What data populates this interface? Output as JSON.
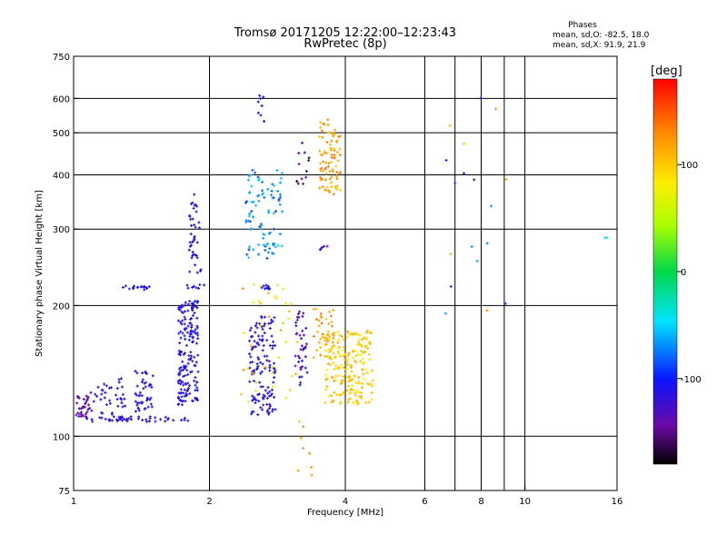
{
  "chart_data": {
    "type": "scatter",
    "title": "Tromsø 20171205 12:22:00–12:23:43",
    "subtitle": "RwPretec (8p)",
    "stats": {
      "heading": "Phases",
      "line1": "mean, sd,O: -82.5, 18.0",
      "line2": "mean, sd,X:  91.9, 21.9"
    },
    "xlabel": "Frequency [MHz]",
    "ylabel": "Stationary phase Virtual Height [km]",
    "x_scale": "log",
    "y_scale": "log",
    "xlim": [
      1,
      16
    ],
    "ylim": [
      75,
      750
    ],
    "x_ticks": [
      {
        "v": 1,
        "label": "1"
      },
      {
        "v": 2,
        "label": "2"
      },
      {
        "v": 4,
        "label": "4"
      },
      {
        "v": 6,
        "label": "6"
      },
      {
        "v": 8,
        "label": "8"
      },
      {
        "v": 10,
        "label": "10"
      },
      {
        "v": 16,
        "label": "16"
      }
    ],
    "x_grid": [
      2,
      4,
      6,
      7,
      8,
      9,
      10
    ],
    "y_ticks": [
      {
        "v": 75,
        "label": "75"
      },
      {
        "v": 100,
        "label": "100"
      },
      {
        "v": 200,
        "label": "200"
      },
      {
        "v": 300,
        "label": "300"
      },
      {
        "v": 400,
        "label": "400"
      },
      {
        "v": 500,
        "label": "500"
      },
      {
        "v": 600,
        "label": "600"
      },
      {
        "v": 750,
        "label": "750"
      }
    ],
    "grid": true,
    "colorbar": {
      "label": "[deg]",
      "range": [
        -180,
        180
      ],
      "ticks": [
        {
          "v": 100,
          "label": "100"
        },
        {
          "v": 0,
          "label": "0"
        },
        {
          "v": -100,
          "label": "-100"
        }
      ]
    },
    "clusters": [
      {
        "name": "o1-base",
        "xmin": 1.0,
        "xmax": 1.08,
        "ymin": 110,
        "ymax": 124,
        "n": 30,
        "phase": [
          -140,
          -140
        ]
      },
      {
        "name": "o1-band",
        "xmin": 1.06,
        "xmax": 1.8,
        "ymin": 108,
        "ymax": 111,
        "n": 50,
        "phase": [
          -120,
          -108
        ]
      },
      {
        "name": "o1-col-a",
        "xmin": 1.07,
        "xmax": 1.22,
        "ymin": 112,
        "ymax": 132,
        "n": 25,
        "phase": [
          -122,
          -106
        ]
      },
      {
        "name": "o1-col-b",
        "xmin": 1.24,
        "xmax": 1.3,
        "ymin": 116,
        "ymax": 140,
        "n": 15,
        "phase": [
          -122,
          -106
        ]
      },
      {
        "name": "o1-col-c",
        "xmin": 1.37,
        "xmax": 1.5,
        "ymin": 114,
        "ymax": 142,
        "n": 45,
        "phase": [
          -122,
          -104
        ]
      },
      {
        "name": "o-220",
        "xmin": 1.28,
        "xmax": 1.48,
        "ymin": 217,
        "ymax": 222,
        "n": 16,
        "phase": [
          -112,
          -104
        ]
      },
      {
        "name": "o2-col",
        "xmin": 1.7,
        "xmax": 1.89,
        "ymin": 118,
        "ymax": 205,
        "n": 170,
        "phase": [
          -125,
          -100
        ]
      },
      {
        "name": "o2-upper",
        "xmin": 1.8,
        "xmax": 1.92,
        "ymin": 235,
        "ymax": 365,
        "n": 40,
        "phase": [
          -118,
          -105
        ]
      },
      {
        "name": "o2-220",
        "xmin": 1.78,
        "xmax": 1.96,
        "ymin": 218,
        "ymax": 224,
        "n": 8,
        "phase": [
          -112,
          -104
        ]
      },
      {
        "name": "o3-col",
        "xmin": 2.45,
        "xmax": 2.8,
        "ymin": 112,
        "ymax": 190,
        "n": 130,
        "phase": [
          -125,
          -100
        ]
      },
      {
        "name": "o3-upper",
        "xmin": 2.4,
        "xmax": 2.9,
        "ymin": 255,
        "ymax": 410,
        "n": 90,
        "phase": [
          -95,
          -48
        ]
      },
      {
        "name": "o3-220",
        "xmin": 2.55,
        "xmax": 2.75,
        "ymin": 218,
        "ymax": 224,
        "n": 10,
        "phase": [
          -112,
          -104
        ]
      },
      {
        "name": "o3-550",
        "xmin": 2.55,
        "xmax": 2.65,
        "ymin": 520,
        "ymax": 620,
        "n": 8,
        "phase": [
          -110,
          -95
        ]
      },
      {
        "name": "x-sparse",
        "xmin": 2.3,
        "xmax": 3.2,
        "ymin": 120,
        "ymax": 230,
        "n": 40,
        "phase": [
          60,
          140
        ]
      },
      {
        "name": "o4-col",
        "xmin": 3.1,
        "xmax": 3.3,
        "ymin": 130,
        "ymax": 195,
        "n": 40,
        "phase": [
          -150,
          -95
        ]
      },
      {
        "name": "o4-high",
        "xmin": 3.1,
        "xmax": 3.35,
        "ymin": 370,
        "ymax": 480,
        "n": 12,
        "phase": [
          -170,
          -140
        ]
      },
      {
        "name": "x1-col",
        "xmin": 3.6,
        "xmax": 4.6,
        "ymin": 118,
        "ymax": 175,
        "n": 220,
        "phase": [
          80,
          118
        ]
      },
      {
        "name": "x1-col-ext",
        "xmin": 3.4,
        "xmax": 3.8,
        "ymin": 150,
        "ymax": 200,
        "n": 35,
        "phase": [
          100,
          145
        ]
      },
      {
        "name": "x1-upper",
        "xmin": 3.5,
        "xmax": 3.9,
        "ymin": 360,
        "ymax": 540,
        "n": 90,
        "phase": [
          98,
          140
        ]
      },
      {
        "name": "x-low",
        "xmin": 3.1,
        "xmax": 3.4,
        "ymin": 78,
        "ymax": 120,
        "n": 8,
        "phase": [
          95,
          135
        ]
      },
      {
        "name": "o-270",
        "xmin": 3.5,
        "xmax": 3.7,
        "ymin": 268,
        "ymax": 274,
        "n": 5,
        "phase": [
          -130,
          -110
        ]
      },
      {
        "name": "far-o",
        "xmin": 6.5,
        "xmax": 9.5,
        "ymin": 185,
        "ymax": 610,
        "n": 12,
        "phase": [
          -120,
          -60
        ]
      },
      {
        "name": "far-x",
        "xmin": 6.8,
        "xmax": 9.4,
        "ymin": 165,
        "ymax": 590,
        "n": 6,
        "phase": [
          90,
          140
        ]
      },
      {
        "name": "edge",
        "xmin": 14.8,
        "xmax": 15.2,
        "ymin": 285,
        "ymax": 292,
        "n": 2,
        "phase": [
          -60,
          -40
        ]
      }
    ]
  }
}
